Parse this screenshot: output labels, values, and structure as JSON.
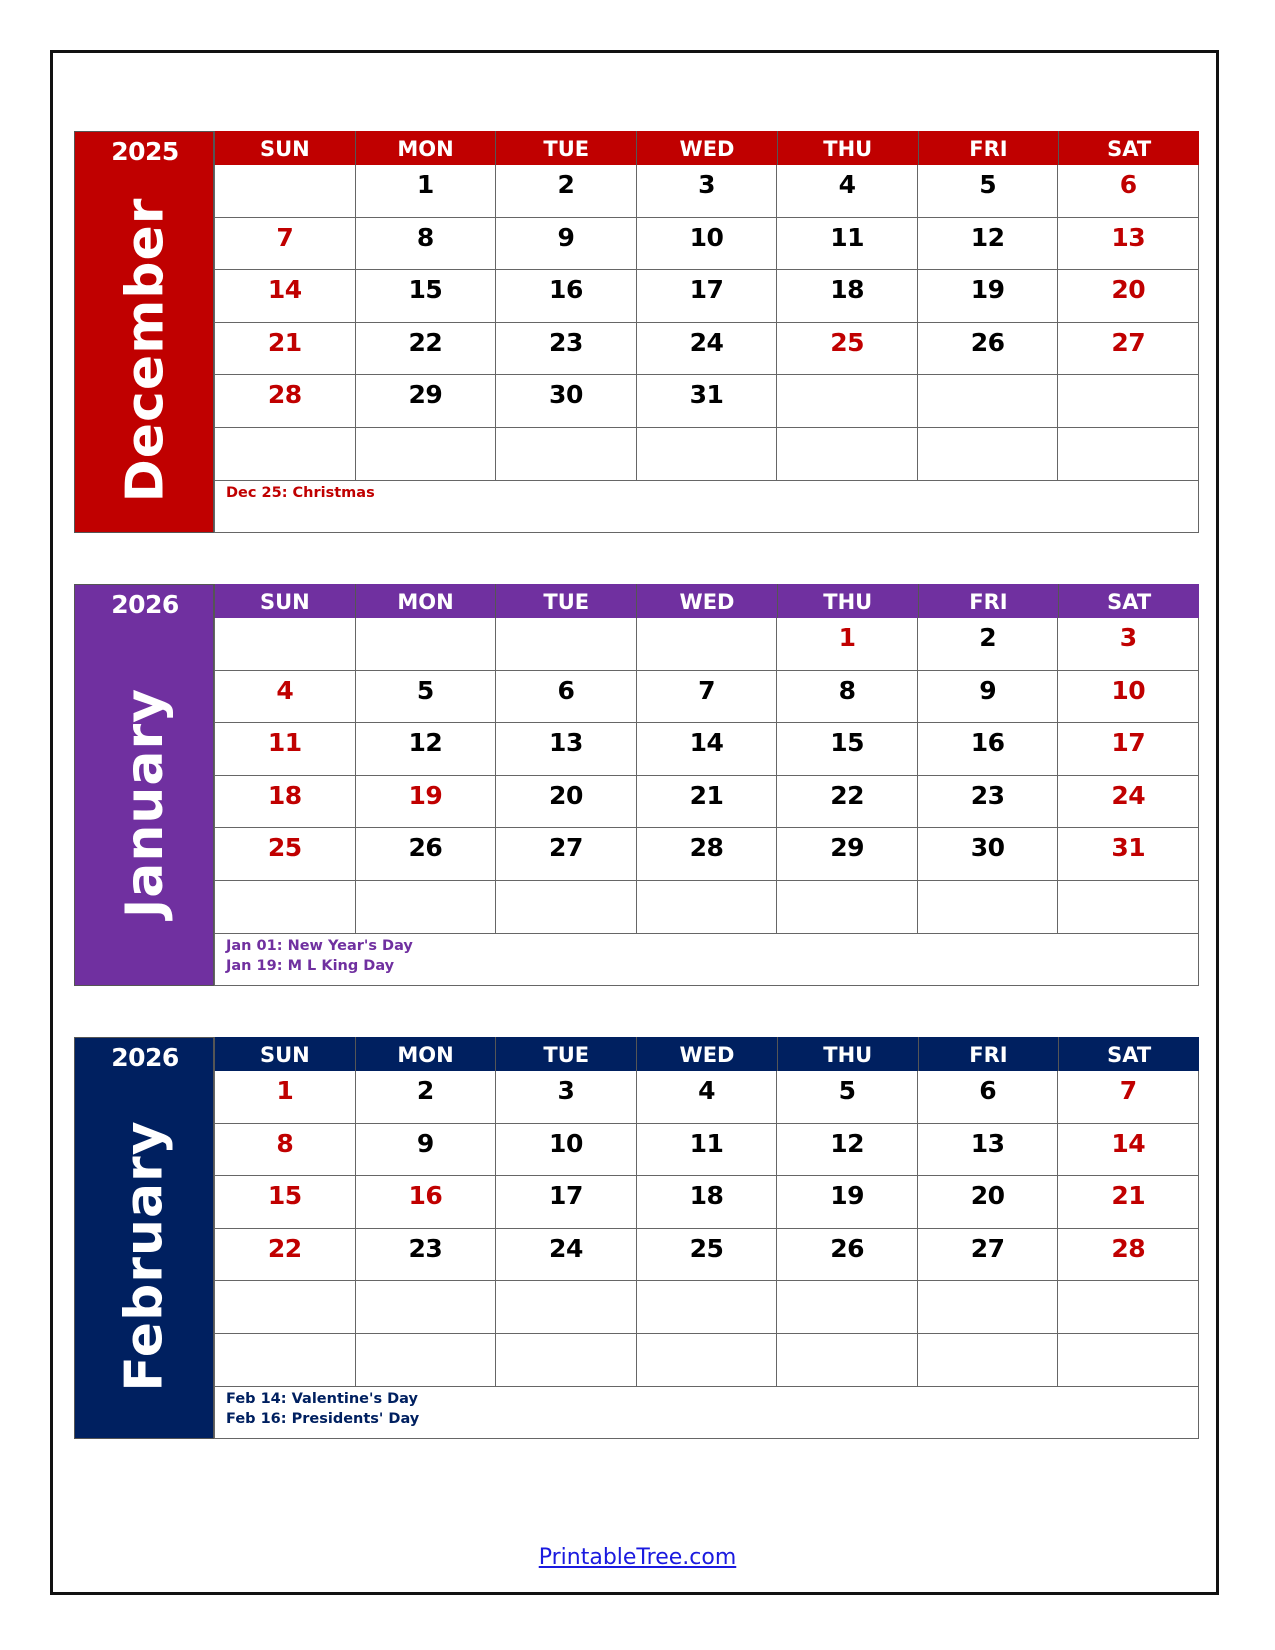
{
  "months": [
    {
      "year": "2025",
      "name": "December",
      "color": "#c00000",
      "weekdays": [
        "SUN",
        "MON",
        "TUE",
        "WED",
        "THU",
        "FRI",
        "SAT"
      ],
      "weeks": [
        [
          "",
          "1",
          "2",
          "3",
          "4",
          "5",
          "6"
        ],
        [
          "7",
          "8",
          "9",
          "10",
          "11",
          "12",
          "13"
        ],
        [
          "14",
          "15",
          "16",
          "17",
          "18",
          "19",
          "20"
        ],
        [
          "21",
          "22",
          "23",
          "24",
          "25",
          "26",
          "27"
        ],
        [
          "28",
          "29",
          "30",
          "31",
          "",
          "",
          ""
        ],
        [
          "",
          "",
          "",
          "",
          "",
          "",
          ""
        ]
      ],
      "red_days": [
        "6",
        "7",
        "13",
        "14",
        "20",
        "21",
        "25",
        "27",
        "28"
      ],
      "notes": [
        "Dec 25: Christmas"
      ]
    },
    {
      "year": "2026",
      "name": "January",
      "color": "#7030a0",
      "weekdays": [
        "SUN",
        "MON",
        "TUE",
        "WED",
        "THU",
        "FRI",
        "SAT"
      ],
      "weeks": [
        [
          "",
          "",
          "",
          "",
          "1",
          "2",
          "3"
        ],
        [
          "4",
          "5",
          "6",
          "7",
          "8",
          "9",
          "10"
        ],
        [
          "11",
          "12",
          "13",
          "14",
          "15",
          "16",
          "17"
        ],
        [
          "18",
          "19",
          "20",
          "21",
          "22",
          "23",
          "24"
        ],
        [
          "25",
          "26",
          "27",
          "28",
          "29",
          "30",
          "31"
        ],
        [
          "",
          "",
          "",
          "",
          "",
          "",
          ""
        ]
      ],
      "red_days": [
        "1",
        "3",
        "4",
        "10",
        "11",
        "17",
        "18",
        "19",
        "24",
        "25",
        "31"
      ],
      "notes": [
        "Jan 01: New Year's Day",
        "Jan 19: M L King Day"
      ]
    },
    {
      "year": "2026",
      "name": "February",
      "color": "#002060",
      "weekdays": [
        "SUN",
        "MON",
        "TUE",
        "WED",
        "THU",
        "FRI",
        "SAT"
      ],
      "weeks": [
        [
          "1",
          "2",
          "3",
          "4",
          "5",
          "6",
          "7"
        ],
        [
          "8",
          "9",
          "10",
          "11",
          "12",
          "13",
          "14"
        ],
        [
          "15",
          "16",
          "17",
          "18",
          "19",
          "20",
          "21"
        ],
        [
          "22",
          "23",
          "24",
          "25",
          "26",
          "27",
          "28"
        ],
        [
          "",
          "",
          "",
          "",
          "",
          "",
          ""
        ],
        [
          "",
          "",
          "",
          "",
          "",
          "",
          ""
        ]
      ],
      "red_days": [
        "1",
        "7",
        "8",
        "14",
        "15",
        "16",
        "21",
        "22",
        "28"
      ],
      "notes": [
        "Feb 14: Valentine's Day",
        "Feb 16: Presidents' Day"
      ]
    }
  ],
  "footer": {
    "link_text": "PrintableTree.com"
  }
}
